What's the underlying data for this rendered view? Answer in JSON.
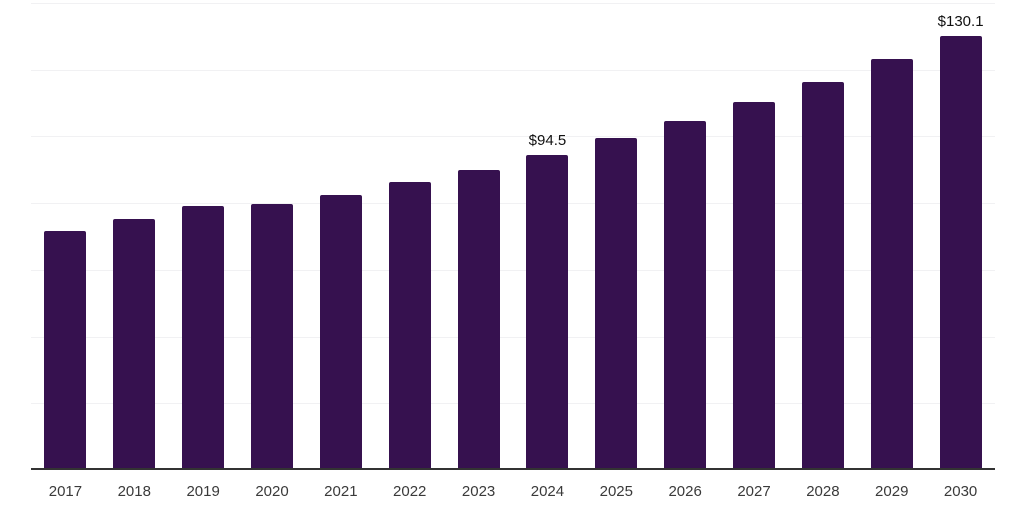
{
  "chart_data": {
    "type": "bar",
    "title": "",
    "xlabel": "",
    "ylabel": "",
    "categories": [
      "2017",
      "2018",
      "2019",
      "2020",
      "2021",
      "2022",
      "2023",
      "2024",
      "2025",
      "2026",
      "2027",
      "2028",
      "2029",
      "2030"
    ],
    "values": [
      71.6,
      75.2,
      79.1,
      79.8,
      82.5,
      86.2,
      90.0,
      94.5,
      99.4,
      104.5,
      110.2,
      116.4,
      123.1,
      130.1
    ],
    "bar_labels": [
      "",
      "",
      "",
      "",
      "",
      "",
      "",
      "$94.5",
      "",
      "",
      "",
      "",
      "",
      "$130.1"
    ],
    "ylim": [
      0,
      140
    ],
    "grid": "horizontal",
    "gridline_step": 20,
    "legend": "none",
    "colors": {
      "bar": "#36114F",
      "gridline": "#f1f1f3",
      "axis": "#333333",
      "tick_label": "#3a3a3a",
      "value_label": "#111111",
      "background": "#ffffff"
    }
  }
}
